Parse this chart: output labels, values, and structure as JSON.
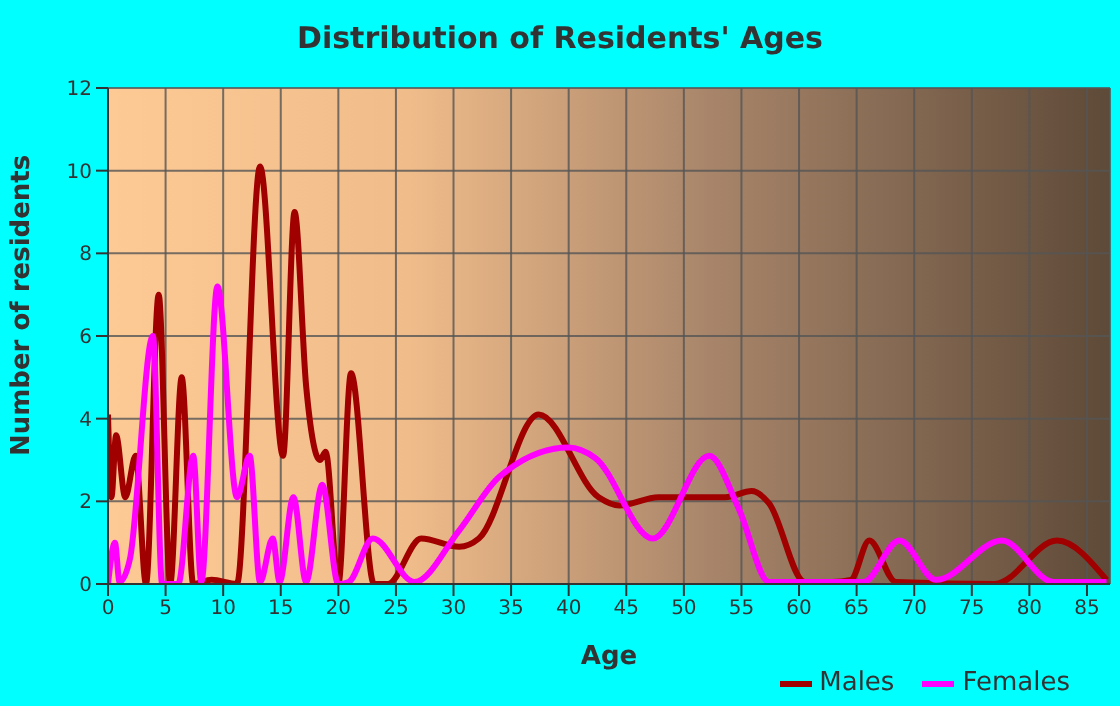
{
  "chart_data": {
    "type": "line",
    "title": "Distribution of Residents' Ages",
    "xlabel": "Age",
    "ylabel": "Number of residents",
    "xlim": [
      0,
      87
    ],
    "xticks": [
      0,
      5,
      10,
      15,
      20,
      25,
      30,
      35,
      40,
      45,
      50,
      55,
      60,
      65,
      70,
      75,
      80,
      85
    ],
    "ylim": [
      0,
      12
    ],
    "yticks": [
      0,
      2,
      4,
      6,
      8,
      10,
      12
    ],
    "grid": true,
    "legend": "bottom right",
    "marker": "none",
    "line_style": "solid",
    "series": [
      {
        "name": "Males",
        "color": "#a00000",
        "x": [
          0,
          0.3,
          0.7,
          1.5,
          2.4,
          3.3,
          4.4,
          5.4,
          6.4,
          7.4,
          9,
          11.2,
          13.2,
          15.2,
          16.2,
          17.2,
          18.4,
          18.9,
          20,
          21.1,
          23.1,
          24.3,
          27.2,
          30.5,
          32.2,
          37.4,
          42.6,
          44.4,
          47.8,
          53.6,
          55.9,
          57.4,
          60.5,
          62.9,
          64.5,
          66.1,
          68.4,
          77,
          82.4,
          86.7
        ],
        "values": [
          4.1,
          2.1,
          3.6,
          2.1,
          3.1,
          0,
          7,
          0,
          5,
          0,
          0.1,
          0,
          10.1,
          3.1,
          9,
          4.8,
          3,
          3.2,
          0,
          5.1,
          0,
          0,
          1.1,
          0.9,
          1.1,
          4.1,
          2.1,
          1.9,
          2.1,
          2.1,
          2.25,
          1.95,
          0.05,
          0.05,
          0.1,
          1.05,
          0.05,
          0,
          1.05,
          0.1
        ]
      },
      {
        "name": "Females",
        "color": "#ff00ff",
        "x": [
          0,
          0.6,
          1,
          1.9,
          3.9,
          4.7,
          6.1,
          7.4,
          8.1,
          9.5,
          11.2,
          12.3,
          13.2,
          14.3,
          14.9,
          16.1,
          17.2,
          18.6,
          20,
          20.9,
          23,
          26.6,
          30.5,
          34,
          40,
          42.3,
          47.3,
          52.2,
          54.8,
          57.4,
          65.6,
          68.7,
          71.9,
          77.6,
          82.1,
          86.7
        ],
        "values": [
          0,
          1,
          0.05,
          0.6,
          6,
          0,
          0,
          3.1,
          0.05,
          7.2,
          2.1,
          3.1,
          0.05,
          1.1,
          0.05,
          2.1,
          0.05,
          2.4,
          0,
          0.05,
          1.1,
          0.05,
          1.3,
          2.6,
          3.3,
          3.05,
          1.1,
          3.1,
          1.8,
          0.05,
          0.05,
          1.05,
          0.1,
          1.05,
          0.05,
          0.05
        ]
      }
    ]
  }
}
